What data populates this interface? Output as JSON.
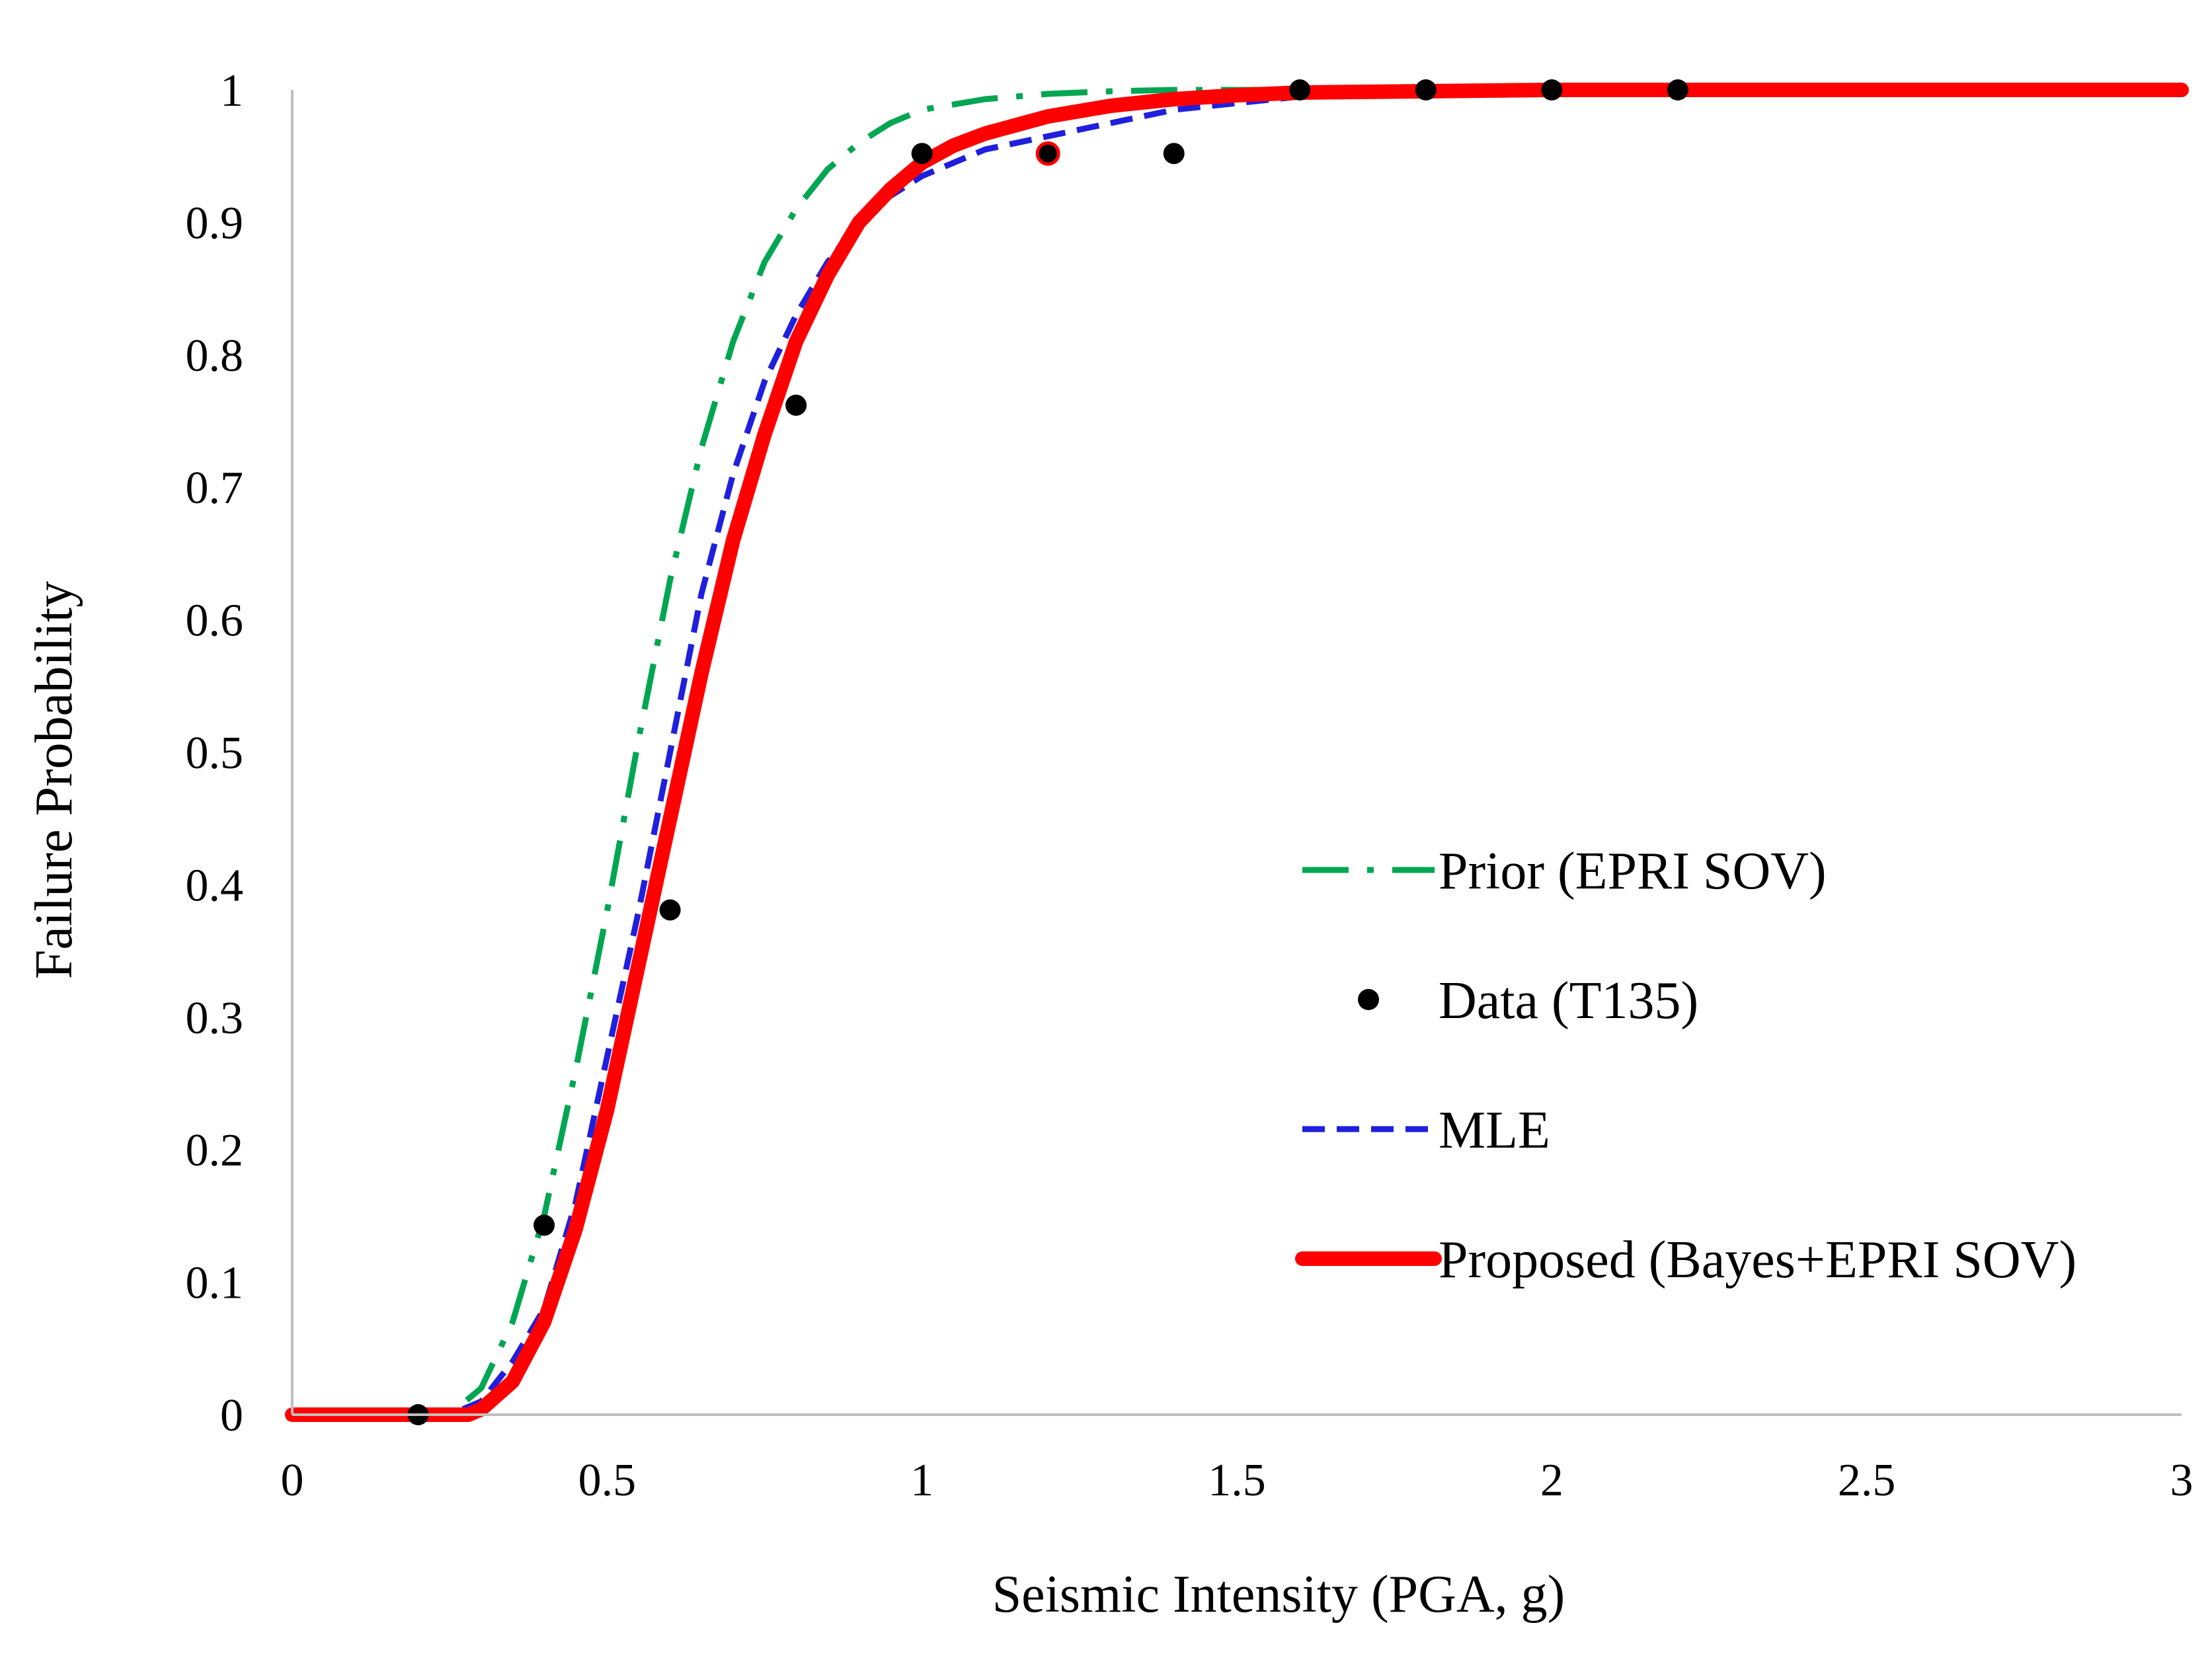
{
  "chart_data": {
    "type": "line",
    "title": "",
    "xlabel": "Seismic Intensity (PGA, g)",
    "ylabel": "Failure Probability",
    "xlim": [
      0,
      3
    ],
    "ylim": [
      0,
      1
    ],
    "grid": false,
    "legend_position": "lower-right",
    "x_ticks": [
      0,
      0.5,
      1,
      1.5,
      2,
      2.5,
      3
    ],
    "x_tick_labels": [
      "0",
      "0.5",
      "1",
      "1.5",
      "2",
      "2.5",
      "3"
    ],
    "y_ticks": [
      0,
      0.1,
      0.2,
      0.3,
      0.4,
      0.5,
      0.6,
      0.7,
      0.8,
      0.9,
      1
    ],
    "y_tick_labels": [
      "0",
      "0.1",
      "0.2",
      "0.3",
      "0.4",
      "0.5",
      "0.6",
      "0.7",
      "0.8",
      "0.9",
      "1"
    ],
    "series": [
      {
        "name": "Prior (EPRI SOV)",
        "kind": "line",
        "style": "dash-dot",
        "color": "#00a651",
        "x": [
          0,
          0.25,
          0.3,
          0.35,
          0.4,
          0.45,
          0.5,
          0.55,
          0.6,
          0.65,
          0.7,
          0.75,
          0.8,
          0.85,
          0.9,
          0.95,
          1.0,
          1.1,
          1.2,
          1.3,
          1.4,
          1.6,
          2.0,
          3.0
        ],
        "y": [
          0,
          0,
          0.02,
          0.07,
          0.15,
          0.26,
          0.38,
          0.51,
          0.63,
          0.73,
          0.81,
          0.87,
          0.91,
          0.94,
          0.96,
          0.975,
          0.985,
          0.993,
          0.997,
          0.999,
          1,
          1,
          1,
          1
        ]
      },
      {
        "name": "Data (T135)",
        "kind": "scatter",
        "color": "#000000",
        "x": [
          0.2,
          0.4,
          0.6,
          0.8,
          1.0,
          1.2,
          1.4,
          1.6,
          1.8,
          2.0,
          2.2
        ],
        "y": [
          0,
          0.143,
          0.381,
          0.762,
          0.952,
          0.952,
          0.952,
          1,
          1,
          1,
          1
        ]
      },
      {
        "name": "MLE",
        "kind": "line",
        "style": "dashed",
        "color": "#1f1fdd",
        "x": [
          0,
          0.25,
          0.3,
          0.35,
          0.4,
          0.45,
          0.5,
          0.55,
          0.6,
          0.65,
          0.7,
          0.75,
          0.8,
          0.85,
          0.9,
          0.95,
          1.0,
          1.1,
          1.2,
          1.3,
          1.4,
          1.5,
          1.6,
          2.0,
          3.0
        ],
        "y": [
          0,
          0,
          0.01,
          0.04,
          0.08,
          0.16,
          0.27,
          0.38,
          0.5,
          0.62,
          0.71,
          0.78,
          0.83,
          0.87,
          0.9,
          0.92,
          0.935,
          0.955,
          0.965,
          0.975,
          0.985,
          0.99,
          0.995,
          1,
          1
        ]
      },
      {
        "name": "Proposed (Bayes+EPRI SOV)",
        "kind": "line",
        "style": "solid",
        "color": "#ff0000",
        "x": [
          0,
          0.28,
          0.3,
          0.35,
          0.4,
          0.45,
          0.5,
          0.55,
          0.6,
          0.65,
          0.7,
          0.75,
          0.8,
          0.85,
          0.9,
          0.95,
          1.0,
          1.05,
          1.1,
          1.2,
          1.3,
          1.4,
          1.5,
          1.6,
          1.8,
          2.0,
          3.0
        ],
        "y": [
          0,
          0,
          0.004,
          0.025,
          0.07,
          0.14,
          0.23,
          0.34,
          0.45,
          0.56,
          0.66,
          0.74,
          0.81,
          0.86,
          0.9,
          0.925,
          0.945,
          0.958,
          0.967,
          0.98,
          0.988,
          0.993,
          0.996,
          0.998,
          0.999,
          1,
          1
        ]
      }
    ],
    "highlighted_point": {
      "x": 1.2,
      "y": 0.952,
      "color": "#ff0000"
    }
  }
}
